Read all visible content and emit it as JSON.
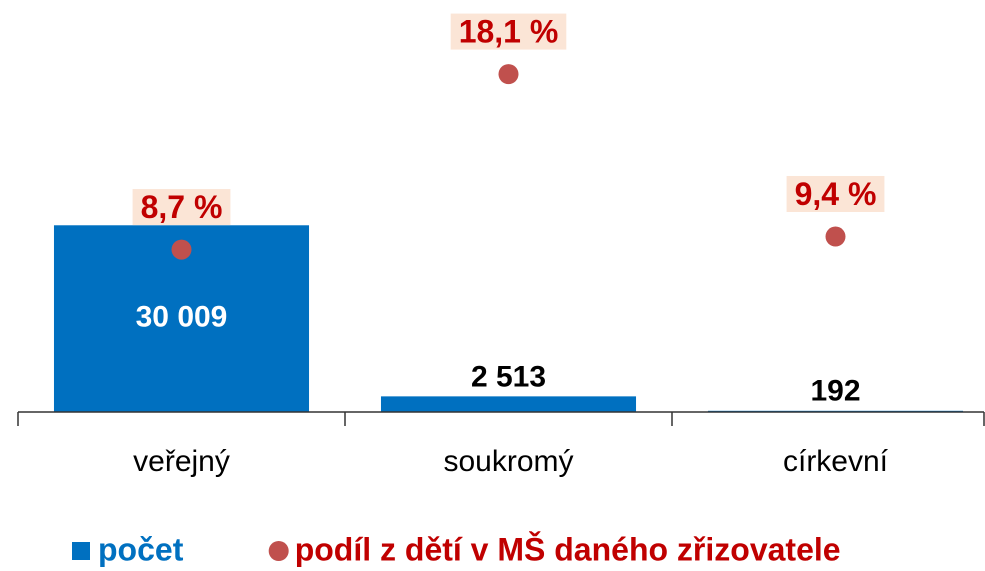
{
  "chart_data": {
    "type": "bar",
    "categories": [
      "veřejný",
      "soukromý",
      "církevní"
    ],
    "series": [
      {
        "name": "počet",
        "color": "#0070c0",
        "values": [
          30009,
          2513,
          192
        ],
        "value_labels": [
          "30 009",
          "2 513",
          "192"
        ]
      },
      {
        "name": "podíl z dětí v MŠ daného zřizovatele",
        "color": "#c0504d",
        "type": "scatter",
        "axis": "y2",
        "values": [
          8.7,
          18.1,
          9.4
        ],
        "value_labels": [
          "8,7 %",
          "18,1 %",
          "9,4 %"
        ]
      }
    ],
    "ylim": [
      0,
      63000
    ],
    "y2lim": [
      0,
      21
    ]
  }
}
